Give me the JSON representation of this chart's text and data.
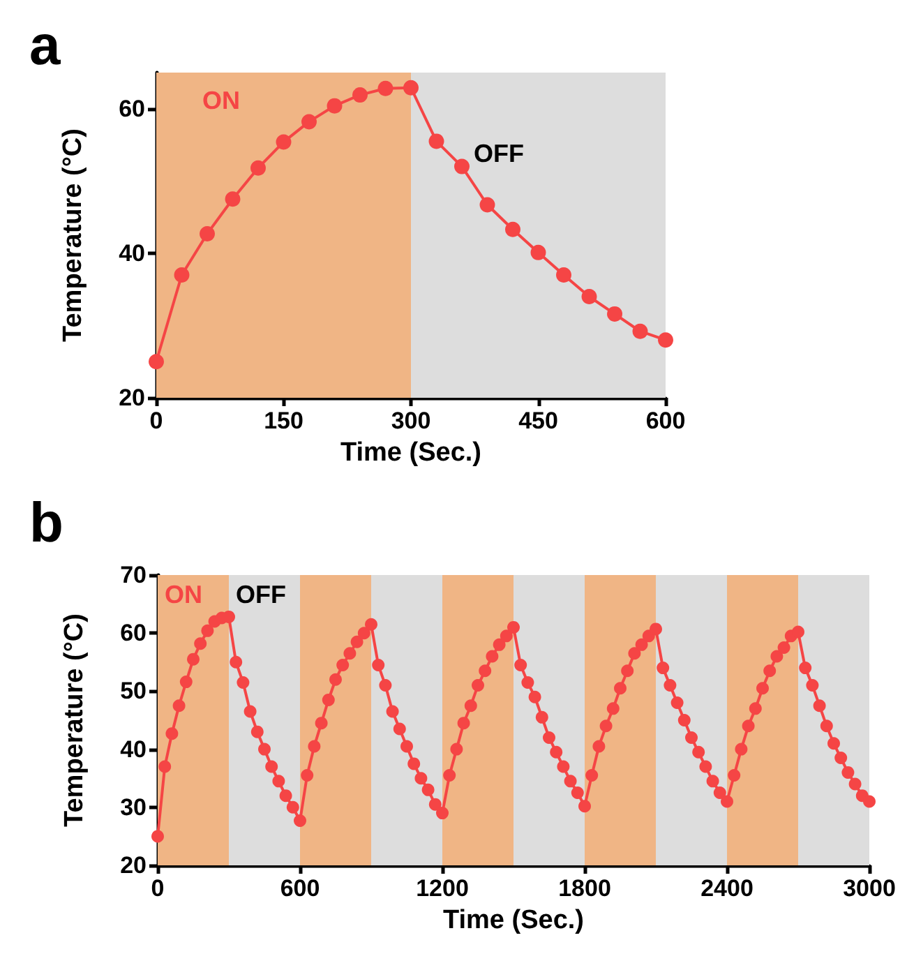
{
  "chart_data": [
    {
      "type": "line",
      "title": "a",
      "xlabel": "Time (Sec.)",
      "ylabel": "Temperature (°C)",
      "xlim": [
        0,
        600
      ],
      "xticks": [
        0,
        150,
        300,
        450,
        600
      ],
      "ylim": [
        20,
        65
      ],
      "yticks": [
        20,
        40,
        60
      ],
      "grid": false,
      "marker": "circle",
      "line_style": "solid",
      "bands": [
        {
          "axis": "x",
          "from": 0,
          "to": 300,
          "label": "ON",
          "color": "#f0b585"
        },
        {
          "axis": "x",
          "from": 300,
          "to": 600,
          "label": "OFF",
          "color": "#dddddd"
        }
      ],
      "x": [
        0,
        30,
        60,
        90,
        120,
        150,
        180,
        210,
        240,
        270,
        300,
        330,
        360,
        390,
        420,
        450,
        480,
        510,
        540,
        570,
        600
      ],
      "series": [
        {
          "color": "#f54545",
          "values": [
            25,
            37,
            42.7,
            47.5,
            51.8,
            55.4,
            58.2,
            60.4,
            61.9,
            62.8,
            62.9,
            55.5,
            52,
            46.7,
            43.3,
            40.1,
            37,
            34,
            31.6,
            29.2,
            28
          ]
        }
      ]
    },
    {
      "type": "line",
      "title": "b",
      "xlabel": "Time (Sec.)",
      "ylabel": "Temperature (°C)",
      "xlim": [
        0,
        3000
      ],
      "xticks": [
        0,
        600,
        1200,
        1800,
        2400,
        3000
      ],
      "ylim": [
        20,
        70
      ],
      "yticks": [
        20,
        30,
        40,
        50,
        60,
        70
      ],
      "grid": false,
      "marker": "circle",
      "line_style": "solid",
      "bands": [
        {
          "axis": "x",
          "from": 0,
          "to": 300,
          "label": "ON",
          "color": "#f0b585"
        },
        {
          "axis": "x",
          "from": 300,
          "to": 600,
          "label": "OFF",
          "color": "#dddddd"
        },
        {
          "axis": "x",
          "from": 600,
          "to": 900,
          "color": "#f0b585"
        },
        {
          "axis": "x",
          "from": 900,
          "to": 1200,
          "color": "#dddddd"
        },
        {
          "axis": "x",
          "from": 1200,
          "to": 1500,
          "color": "#f0b585"
        },
        {
          "axis": "x",
          "from": 1500,
          "to": 1800,
          "color": "#dddddd"
        },
        {
          "axis": "x",
          "from": 1800,
          "to": 2100,
          "color": "#f0b585"
        },
        {
          "axis": "x",
          "from": 2100,
          "to": 2400,
          "color": "#dddddd"
        },
        {
          "axis": "x",
          "from": 2400,
          "to": 2700,
          "color": "#f0b585"
        },
        {
          "axis": "x",
          "from": 2700,
          "to": 3000,
          "color": "#dddddd"
        }
      ],
      "x": [
        0,
        30,
        60,
        90,
        120,
        150,
        180,
        210,
        240,
        270,
        300,
        330,
        360,
        390,
        420,
        450,
        480,
        510,
        540,
        570,
        600,
        630,
        660,
        690,
        720,
        750,
        780,
        810,
        840,
        870,
        900,
        930,
        960,
        990,
        1020,
        1050,
        1080,
        1110,
        1140,
        1170,
        1200,
        1230,
        1260,
        1290,
        1320,
        1350,
        1380,
        1410,
        1440,
        1470,
        1500,
        1530,
        1560,
        1590,
        1620,
        1650,
        1680,
        1710,
        1740,
        1770,
        1800,
        1830,
        1860,
        1890,
        1920,
        1950,
        1980,
        2010,
        2040,
        2070,
        2100,
        2130,
        2160,
        2190,
        2220,
        2250,
        2280,
        2310,
        2340,
        2370,
        2400,
        2430,
        2460,
        2490,
        2520,
        2550,
        2580,
        2610,
        2640,
        2670,
        2700,
        2730,
        2760,
        2790,
        2820,
        2850,
        2880,
        2910,
        2940,
        2970,
        3000
      ],
      "series": [
        {
          "color": "#f54545",
          "values": [
            25,
            37,
            42.7,
            47.5,
            51.6,
            55.5,
            58.2,
            60.4,
            62,
            62.6,
            62.8,
            55,
            51.5,
            46.5,
            43,
            40,
            37,
            34.5,
            32,
            30,
            27.7,
            35.5,
            40.5,
            44.5,
            48.5,
            52,
            54.5,
            56.5,
            58.5,
            60,
            61.5,
            54.5,
            51,
            46.5,
            43.5,
            40.5,
            37.5,
            35,
            33,
            30.5,
            29,
            35.5,
            40,
            44.5,
            47.5,
            51,
            53.5,
            56,
            58,
            59.5,
            61,
            54.5,
            51.5,
            49,
            45.5,
            42,
            39.5,
            37,
            34.5,
            32.5,
            30.2,
            35.5,
            40.5,
            44,
            47,
            50.5,
            53.5,
            56.5,
            58,
            59.5,
            60.7,
            54,
            51,
            48,
            45,
            42,
            39.5,
            37,
            34.5,
            32.5,
            31,
            35.5,
            40,
            44,
            47,
            50.5,
            53.5,
            56,
            57.5,
            59.5,
            60.2,
            54,
            51,
            47.5,
            44,
            41,
            38.5,
            36,
            34,
            32,
            31
          ]
        }
      ]
    }
  ]
}
